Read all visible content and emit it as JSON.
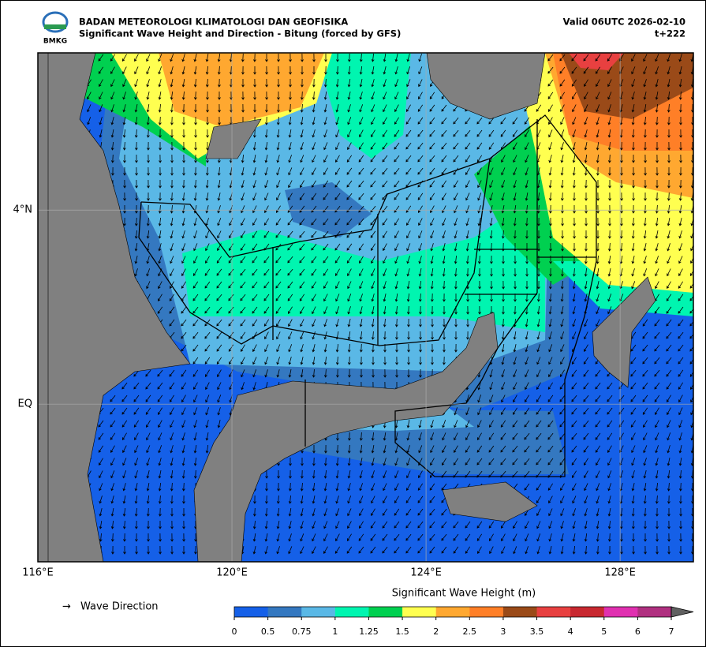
{
  "header": {
    "logo_text": "BMKG",
    "agency": "BADAN METEOROLOGI KLIMATOLOGI DAN GEOFISIKA",
    "title": "Significant Wave Height and Direction - Bitung (forced by GFS)",
    "valid": "Valid 06UTC 2026-02-10",
    "step": "t+222"
  },
  "map": {
    "xlim": [
      116,
      129.51
    ],
    "ylim": [
      -3.25,
      7.24
    ],
    "xticks": [
      {
        "value": 116,
        "label": "116°E"
      },
      {
        "value": 120,
        "label": "120°E"
      },
      {
        "value": 124,
        "label": "124°E"
      },
      {
        "value": 128,
        "label": "128°E"
      }
    ],
    "yticks": [
      {
        "value": 0,
        "label": "EQ"
      },
      {
        "value": 4,
        "label": "4°N"
      }
    ],
    "grid": true
  },
  "legend": {
    "arrow": "→",
    "label": "Wave Direction"
  },
  "colorbar": {
    "title": "Significant Wave Height (m)",
    "ticks": [
      0,
      0.5,
      0.75,
      1,
      1.25,
      1.5,
      2,
      2.5,
      3,
      3.5,
      4,
      5,
      6,
      7
    ],
    "colors": [
      "#1560e8",
      "#3478c0",
      "#5ab8e6",
      "#00f5b0",
      "#00d050",
      "#ffff50",
      "#ffa830",
      "#ff7f27",
      "#9a4a18",
      "#e84040",
      "#c82830",
      "#e030b0",
      "#b03080"
    ],
    "extend_color": "#606060"
  }
}
